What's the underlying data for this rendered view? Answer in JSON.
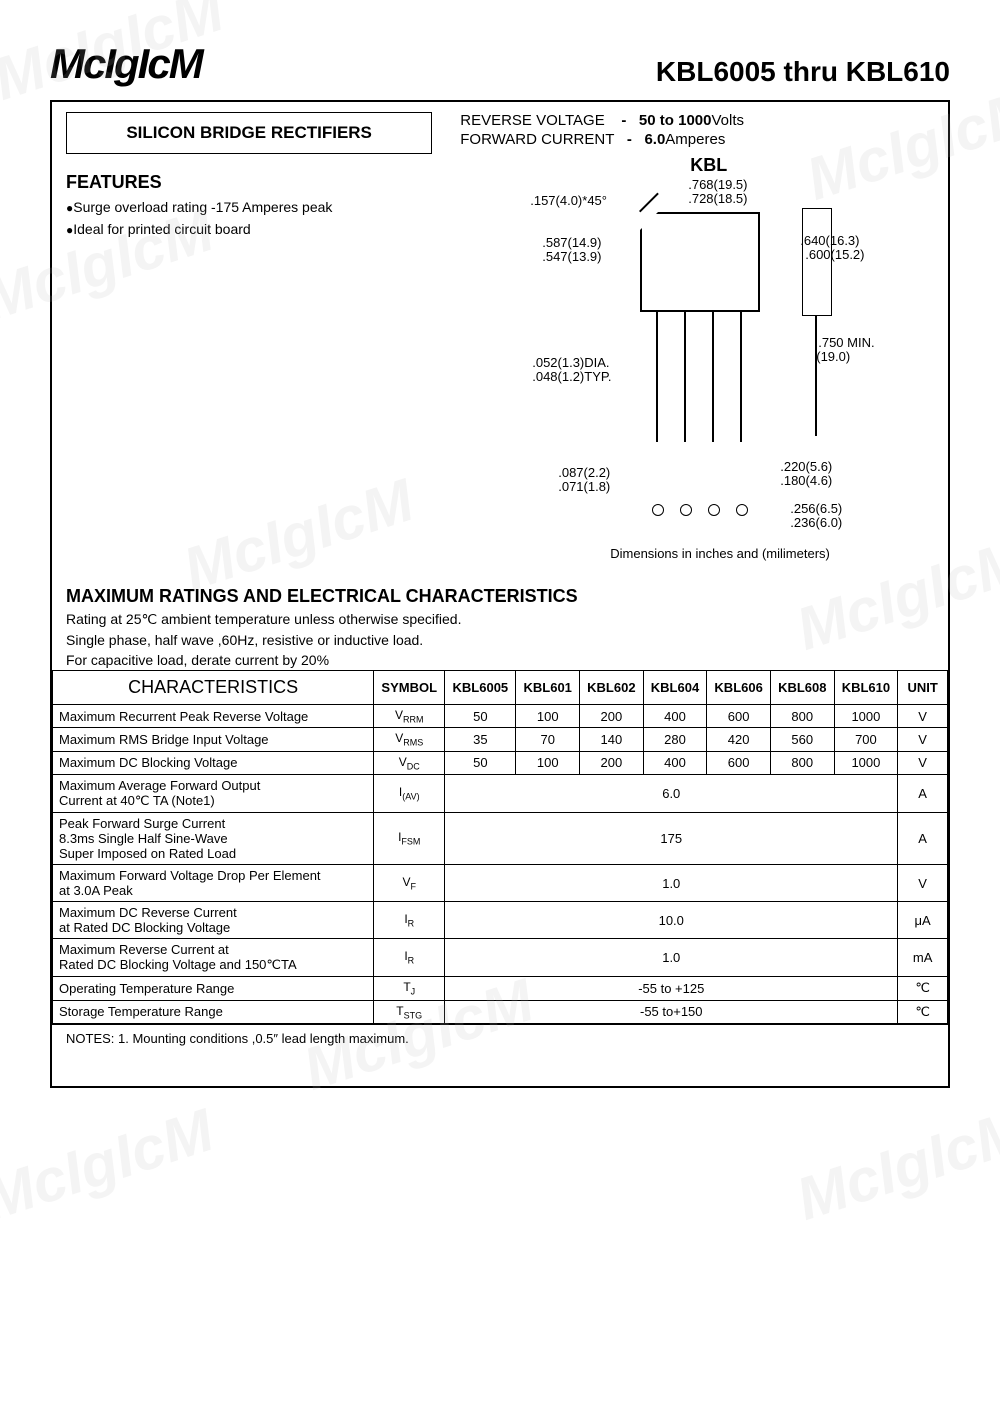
{
  "brand": "McIgIcM",
  "product_title": "KBL6005 thru KBL610",
  "subtitle": "SILICON BRIDGE RECTIFIERS",
  "spec_lines": {
    "rv_label": "REVERSE VOLTAGE",
    "rv_dash": "-",
    "rv_range": "50 to 1000",
    "rv_unit": "Volts",
    "fc_label": "FORWARD CURRENT",
    "fc_dash": "-",
    "fc_val": "6.0",
    "fc_unit": "Amperes"
  },
  "features_header": "FEATURES",
  "features": [
    "Surge overload rating -175 Amperes peak",
    "Ideal for printed circuit board"
  ],
  "package_label": "KBL",
  "dimensions": {
    "top_w1": ".768(19.5)",
    "top_w2": ".728(18.5)",
    "chamfer": ".157(4.0)*45°",
    "body_h1": ".587(14.9)",
    "body_h2": ".547(13.9)",
    "side_h1": ".640(16.3)",
    "side_h2": ".600(15.2)",
    "lead_dia1": ".052(1.3)DIA.",
    "lead_dia2": ".048(1.2)TYP.",
    "lead_len": ".750",
    "lead_len_mm": "(19.0)",
    "lead_min": "MIN.",
    "pitch1": ".087(2.2)",
    "pitch2": ".071(1.8)",
    "span1": ".220(5.6)",
    "span2": ".180(4.6)",
    "offset1": ".256(6.5)",
    "offset2": ".236(6.0)",
    "caption": "Dimensions in inches and (milimeters)"
  },
  "ratings_header": "MAXIMUM RATINGS AND ELECTRICAL CHARACTERISTICS",
  "ratings_notes": [
    "Rating at 25℃ ambient temperature unless otherwise specified.",
    "Single phase, half wave ,60Hz, resistive or inductive load.",
    "For capacitive load, derate current by 20%"
  ],
  "table": {
    "header_char": "CHARACTERISTICS",
    "header_symbol": "SYMBOL",
    "parts": [
      "KBL6005",
      "KBL601",
      "KBL602",
      "KBL604",
      "KBL606",
      "KBL608",
      "KBL610"
    ],
    "header_unit": "UNIT",
    "rows": [
      {
        "char": "Maximum Recurrent Peak Reverse Voltage",
        "sym": "VRRM",
        "vals": [
          "50",
          "100",
          "200",
          "400",
          "600",
          "800",
          "1000"
        ],
        "unit": "V"
      },
      {
        "char": "Maximum RMS Bridge Input Voltage",
        "sym": "VRMS",
        "vals": [
          "35",
          "70",
          "140",
          "280",
          "420",
          "560",
          "700"
        ],
        "unit": "V"
      },
      {
        "char": "Maximum DC Blocking Voltage",
        "sym": "VDC",
        "vals": [
          "50",
          "100",
          "200",
          "400",
          "600",
          "800",
          "1000"
        ],
        "unit": "V"
      },
      {
        "char": "Maximum Average Forward Output\nCurrent at 40℃ TA   (Note1)",
        "sym": "I(AV)",
        "merged": "6.0",
        "unit": "A"
      },
      {
        "char": "Peak Forward Surge Current\n8.3ms Single Half Sine-Wave\nSuper Imposed on Rated Load",
        "sym": "IFSM",
        "merged": "175",
        "unit": "A"
      },
      {
        "char": "Maximum  Forward Voltage Drop Per Element\nat 3.0A Peak",
        "sym": "VF",
        "merged": "1.0",
        "unit": "V"
      },
      {
        "char": "Maximum DC  Reverse Current\nat Rated DC Blocking Voltage",
        "sym": "IR",
        "merged": "10.0",
        "unit": "μA"
      },
      {
        "char": "Maximum Reverse Current at\nRated DC Blocking Voltage and 150℃TA",
        "sym": "IR",
        "merged": "1.0",
        "unit": "mA"
      },
      {
        "char": "Operating Temperature Range",
        "sym": "TJ",
        "merged": "-55 to +125",
        "unit": "℃"
      },
      {
        "char": "Storage Temperature Range",
        "sym": "TSTG",
        "merged": "-55 to+150",
        "unit": "℃"
      }
    ]
  },
  "footnote": "NOTES:  1. Mounting conditions ,0.5″  lead length maximum.",
  "colors": {
    "text": "#000000",
    "bg": "#ffffff",
    "watermark": "rgba(180,180,180,0.15)"
  }
}
